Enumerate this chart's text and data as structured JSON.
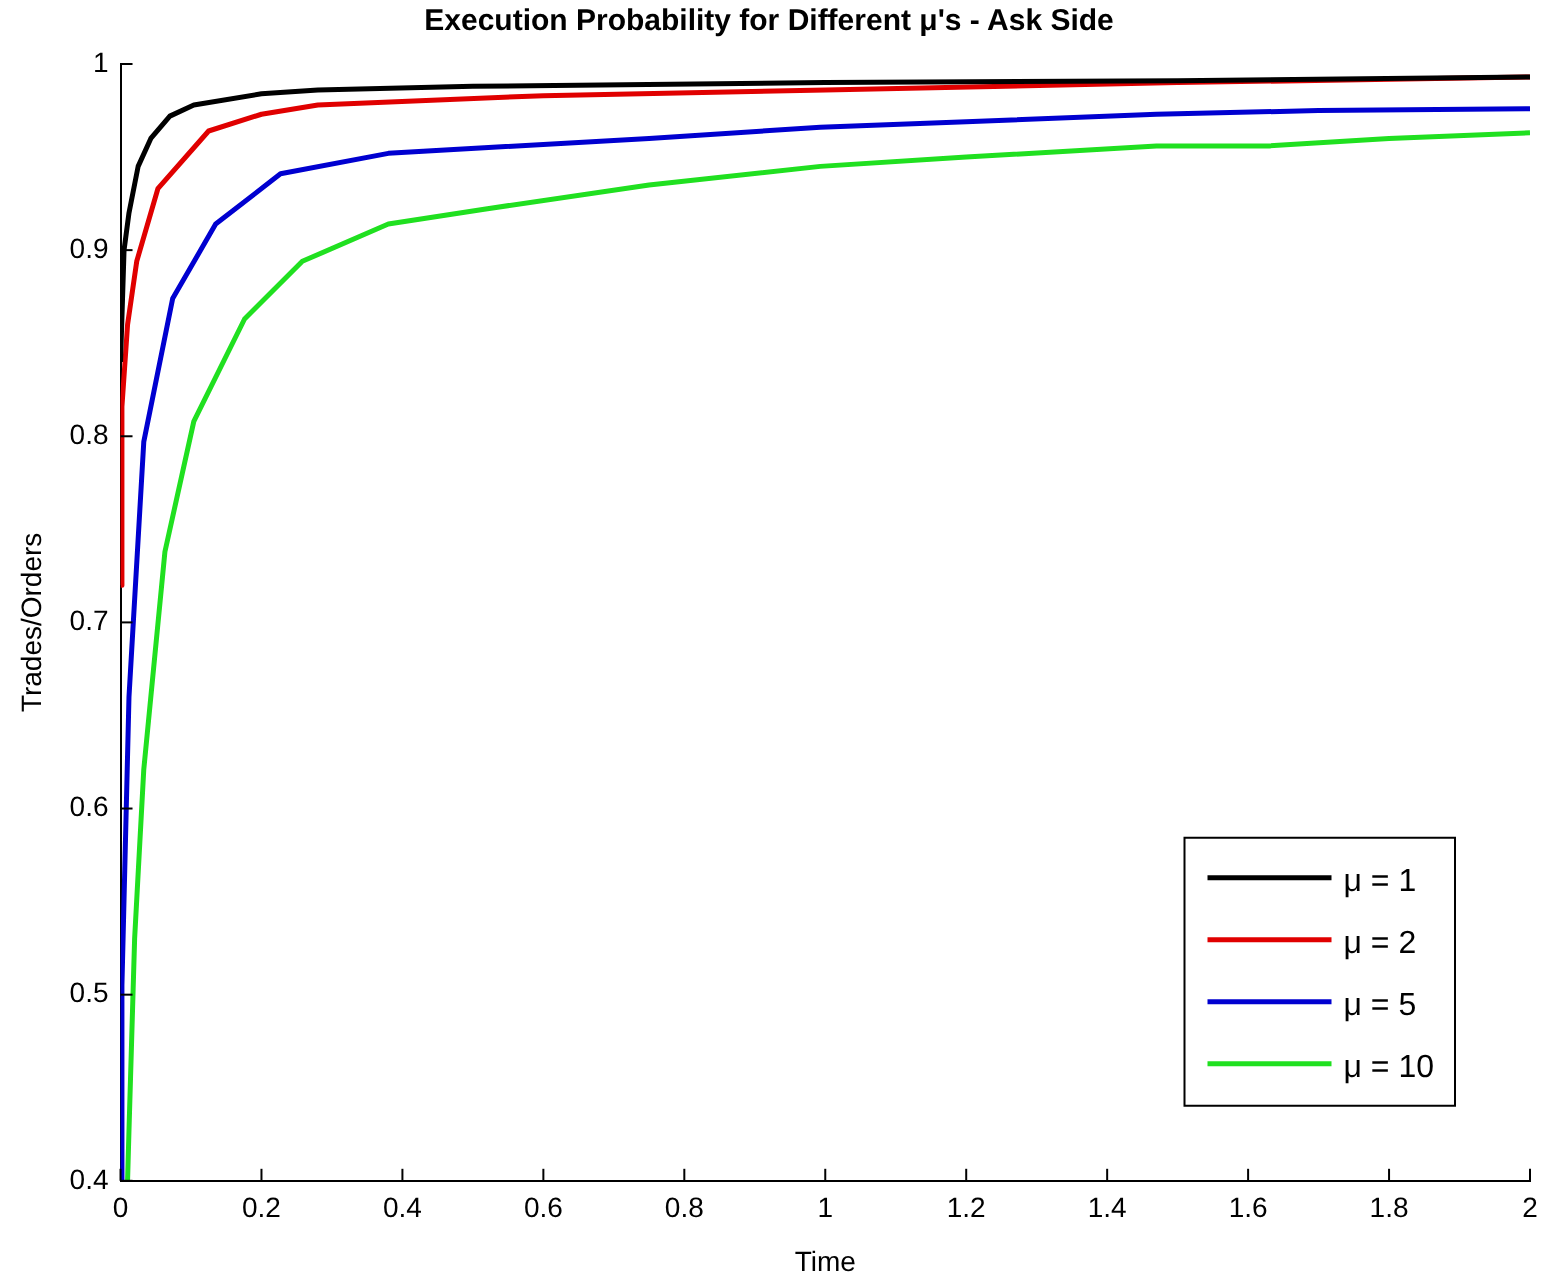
{
  "chart_data": {
    "type": "line",
    "title": "Execution Probability for Different μ's - Ask Side",
    "xlabel": "Time",
    "ylabel": "Trades/Orders",
    "xlim": [
      0,
      2
    ],
    "ylim": [
      0.4,
      1
    ],
    "xticks": [
      0,
      0.2,
      0.4,
      0.6,
      0.8,
      1,
      1.2,
      1.4,
      1.6,
      1.8,
      2
    ],
    "yticks": [
      0.4,
      0.5,
      0.6,
      0.7,
      0.8,
      0.9,
      1
    ],
    "grid": false,
    "legend": "bottom right",
    "marker": "none",
    "line_style": "solid",
    "series": [
      {
        "name": "μ = 1",
        "color": "#000000",
        "x": [
          0,
          0.005,
          0.012,
          0.025,
          0.043,
          0.07,
          0.104,
          0.2,
          0.28,
          0.5,
          1,
          1.5,
          2
        ],
        "values": [
          0.84,
          0.9,
          0.92,
          0.945,
          0.96,
          0.972,
          0.978,
          0.984,
          0.986,
          0.988,
          0.99,
          0.991,
          0.993
        ]
      },
      {
        "name": "μ = 2",
        "color": "#e00000",
        "x": [
          0,
          0.002,
          0.01,
          0.023,
          0.053,
          0.125,
          0.2,
          0.28,
          0.6,
          1,
          1.5,
          2
        ],
        "values": [
          0.72,
          0.816,
          0.86,
          0.894,
          0.933,
          0.964,
          0.973,
          0.978,
          0.983,
          0.986,
          0.99,
          0.993
        ]
      },
      {
        "name": "μ = 5",
        "color": "#0000d0",
        "x": [
          0,
          0.002,
          0.012,
          0.033,
          0.074,
          0.135,
          0.227,
          0.38,
          0.516,
          0.75,
          0.993,
          1.2,
          1.47,
          1.7,
          2
        ],
        "values": [
          0.4,
          0.505,
          0.66,
          0.797,
          0.874,
          0.914,
          0.941,
          0.952,
          0.955,
          0.96,
          0.966,
          0.969,
          0.973,
          0.975,
          0.976
        ]
      },
      {
        "name": "μ = 10",
        "color": "#20e020",
        "x": [
          0.01,
          0.012,
          0.02,
          0.033,
          0.063,
          0.104,
          0.176,
          0.258,
          0.38,
          0.516,
          0.75,
          0.993,
          1.2,
          1.47,
          1.63,
          1.8,
          2
        ],
        "values": [
          0.4,
          0.427,
          0.53,
          0.621,
          0.738,
          0.808,
          0.863,
          0.894,
          0.914,
          0.922,
          0.935,
          0.945,
          0.95,
          0.956,
          0.956,
          0.96,
          0.963
        ]
      }
    ]
  }
}
